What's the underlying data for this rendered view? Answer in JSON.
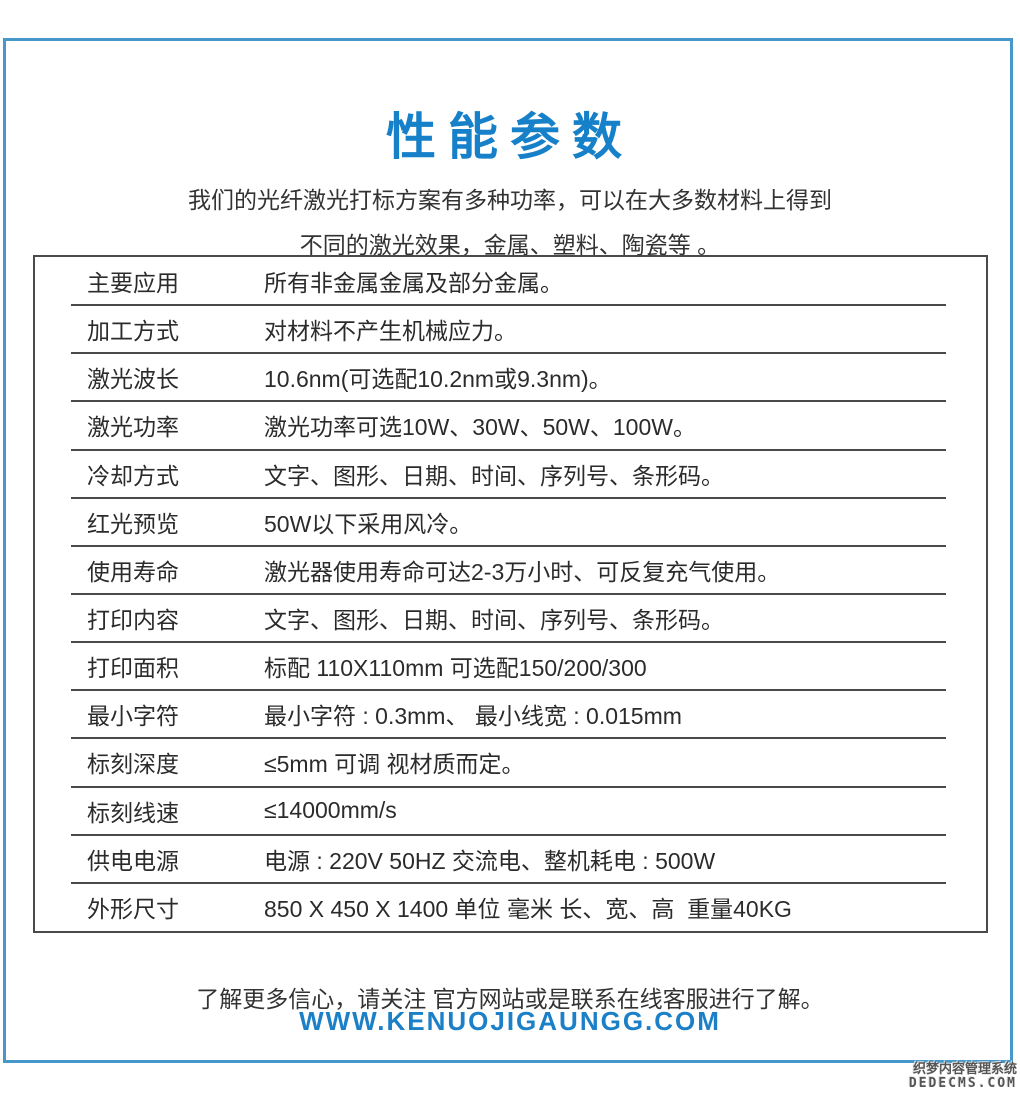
{
  "colors": {
    "accent_blue": "#1680c8",
    "border_blue": "#4697ca",
    "table_line_dark": "#4a4a4a",
    "text_dark": "#2b2b2b"
  },
  "header": {
    "title": "性能参数",
    "intro_line1": "我们的光纤激光打标方案有多种功率，可以在大多数材料上得到",
    "intro_line2": "不同的激光效果，金属、塑料、陶瓷等 。"
  },
  "spec_table": {
    "rows": [
      {
        "label": "主要应用",
        "value": "所有非金属金属及部分金属。"
      },
      {
        "label": "加工方式",
        "value": "对材料不产生机械应力。"
      },
      {
        "label": "激光波长",
        "value": "10.6nm(可选配10.2nm或9.3nm)。"
      },
      {
        "label": "激光功率",
        "value": "激光功率可选10W、30W、50W、100W。"
      },
      {
        "label": "冷却方式",
        "value": "文字、图形、日期、时间、序列号、条形码。"
      },
      {
        "label": "红光预览",
        "value": "50W以下采用风冷。"
      },
      {
        "label": "使用寿命",
        "value": "激光器使用寿命可达2-3万小时、可反复充气使用。"
      },
      {
        "label": "打印内容",
        "value": "文字、图形、日期、时间、序列号、条形码。"
      },
      {
        "label": "打印面积",
        "value": "标配 110X110mm 可选配150/200/300"
      },
      {
        "label": "最小字符",
        "value": "最小字符 : 0.3mm、 最小线宽 : 0.015mm"
      },
      {
        "label": "标刻深度",
        "value": "≤5mm 可调 视材质而定。"
      },
      {
        "label": "标刻线速",
        "value": "≤14000mm/s"
      },
      {
        "label": "供电电源",
        "value": "电源 : 220V 50HZ 交流电、整机耗电 : 500W"
      },
      {
        "label": "外形尺寸",
        "value": "850 X 450 X 1400 单位 毫米 长、宽、高  重量40KG"
      }
    ]
  },
  "footer": {
    "note": "了解更多信心，请关注 官方网站或是联系在线客服进行了解。",
    "website": "WWW.KENUOJIGAUNGG.COM"
  },
  "watermark": {
    "line1": "织梦内容管理系统",
    "line2": "DEDECMS.COM"
  }
}
